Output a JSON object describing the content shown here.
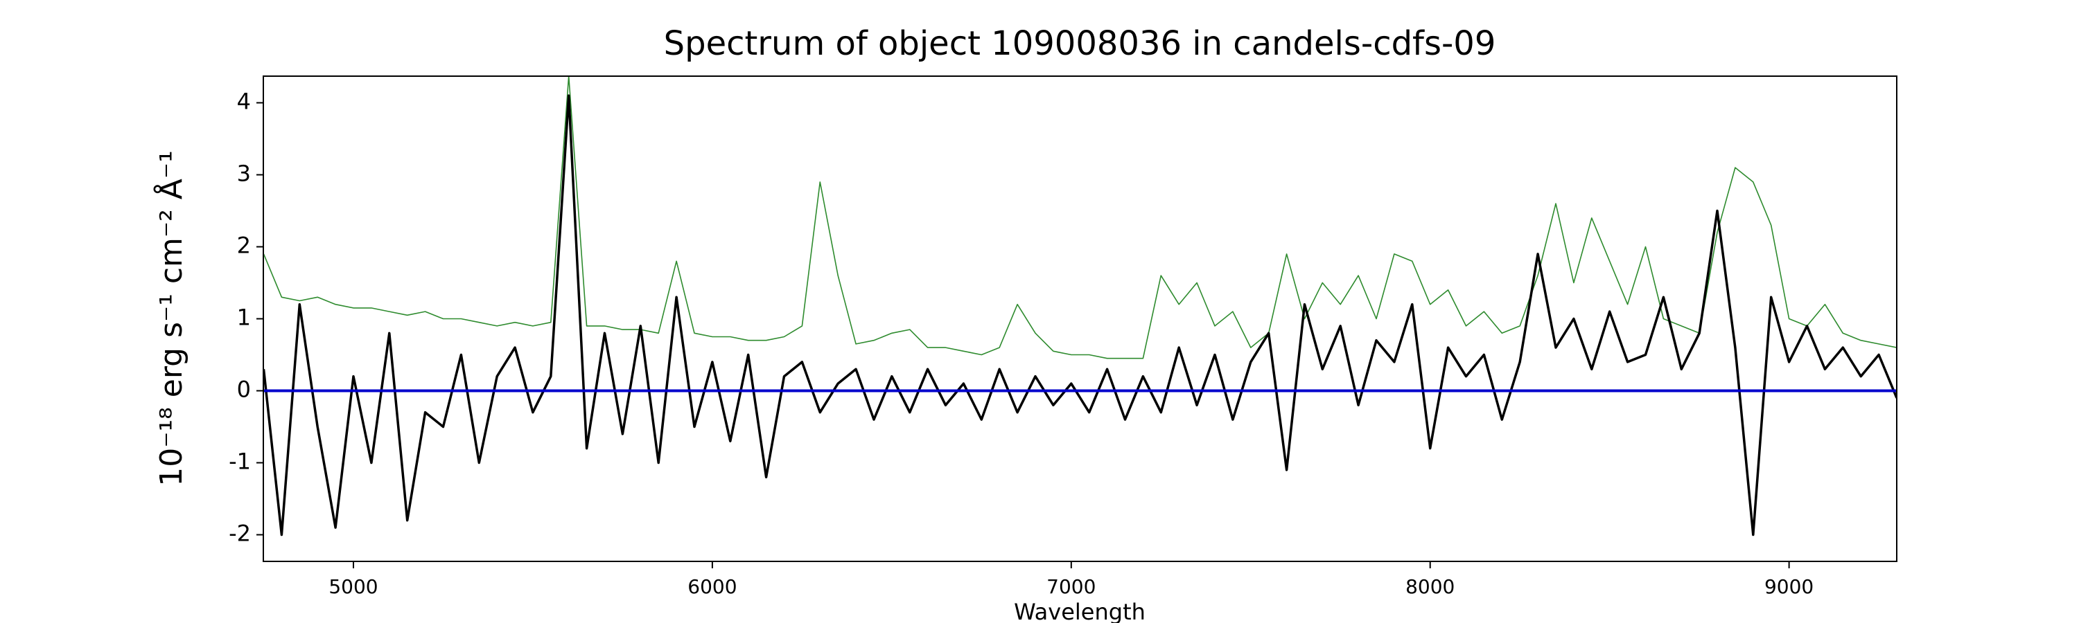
{
  "chart_data": {
    "type": "line",
    "title": "Spectrum of object 109008036 in candels-cdfs-09",
    "xlabel": "Wavelength",
    "ylabel": "10⁻¹⁸ erg s⁻¹ cm⁻² Å⁻¹",
    "x": [
      4750,
      4800,
      4850,
      4900,
      4950,
      5000,
      5050,
      5100,
      5150,
      5200,
      5250,
      5300,
      5350,
      5400,
      5450,
      5500,
      5550,
      5600,
      5650,
      5700,
      5750,
      5800,
      5850,
      5900,
      5950,
      6000,
      6050,
      6100,
      6150,
      6200,
      6250,
      6300,
      6350,
      6400,
      6450,
      6500,
      6550,
      6600,
      6650,
      6700,
      6750,
      6800,
      6850,
      6900,
      6950,
      7000,
      7050,
      7100,
      7150,
      7200,
      7250,
      7300,
      7350,
      7400,
      7450,
      7500,
      7550,
      7600,
      7650,
      7700,
      7750,
      7800,
      7850,
      7900,
      7950,
      8000,
      8050,
      8100,
      8150,
      8200,
      8250,
      8300,
      8350,
      8400,
      8450,
      8500,
      8550,
      8600,
      8650,
      8700,
      8750,
      8800,
      8850,
      8900,
      8950,
      9000,
      9050,
      9100,
      9150,
      9200,
      9250,
      9300
    ],
    "series": [
      {
        "color": "#2e8b2e",
        "width": 1.6,
        "values": [
          1.9,
          1.3,
          1.25,
          1.3,
          1.2,
          1.15,
          1.15,
          1.1,
          1.05,
          1.1,
          1.0,
          1.0,
          0.95,
          0.9,
          0.95,
          0.9,
          0.95,
          4.37,
          0.9,
          0.9,
          0.85,
          0.85,
          0.8,
          1.8,
          0.8,
          0.75,
          0.75,
          0.7,
          0.7,
          0.75,
          0.9,
          2.9,
          1.6,
          0.65,
          0.7,
          0.8,
          0.85,
          0.6,
          0.6,
          0.55,
          0.5,
          0.6,
          1.2,
          0.8,
          0.55,
          0.5,
          0.5,
          0.45,
          0.45,
          0.45,
          1.6,
          1.2,
          1.5,
          0.9,
          1.1,
          0.6,
          0.8,
          1.9,
          1.0,
          1.5,
          1.2,
          1.6,
          1.0,
          1.9,
          1.8,
          1.2,
          1.4,
          0.9,
          1.1,
          0.8,
          0.9,
          1.6,
          2.6,
          1.5,
          2.4,
          1.8,
          1.2,
          2.0,
          1.0,
          0.9,
          0.8,
          2.2,
          3.1,
          2.9,
          2.3,
          1.0,
          0.9,
          1.2,
          0.8,
          0.7,
          0.65,
          0.6
        ]
      },
      {
        "color": "#000000",
        "width": 3.5,
        "values": [
          0.3,
          -2.0,
          1.2,
          -0.5,
          -1.9,
          0.2,
          -1.0,
          0.8,
          -1.8,
          -0.3,
          -0.5,
          0.5,
          -1.0,
          0.2,
          0.6,
          -0.3,
          0.2,
          4.1,
          -0.8,
          0.8,
          -0.6,
          0.9,
          -1.0,
          1.3,
          -0.5,
          0.4,
          -0.7,
          0.5,
          -1.2,
          0.2,
          0.4,
          -0.3,
          0.1,
          0.3,
          -0.4,
          0.2,
          -0.3,
          0.3,
          -0.2,
          0.1,
          -0.4,
          0.3,
          -0.3,
          0.2,
          -0.2,
          0.1,
          -0.3,
          0.3,
          -0.4,
          0.2,
          -0.3,
          0.6,
          -0.2,
          0.5,
          -0.4,
          0.4,
          0.8,
          -1.1,
          1.2,
          0.3,
          0.9,
          -0.2,
          0.7,
          0.4,
          1.2,
          -0.8,
          0.6,
          0.2,
          0.5,
          -0.4,
          0.4,
          1.9,
          0.6,
          1.0,
          0.3,
          1.1,
          0.4,
          0.5,
          1.3,
          0.3,
          0.8,
          2.5,
          0.6,
          -2.0,
          1.3,
          0.4,
          0.9,
          0.3,
          0.6,
          0.2,
          0.5,
          -0.1
        ]
      },
      {
        "color": "#0000cc",
        "width": 4,
        "x": [
          4750,
          9300
        ],
        "values": [
          0,
          0
        ]
      }
    ],
    "xlim": [
      4749,
      9300
    ],
    "xticks": [
      5000,
      6000,
      7000,
      8000,
      9000
    ],
    "ylim": [
      -2.37,
      4.37
    ],
    "yticks": [
      -2,
      -1,
      0,
      1,
      2,
      3,
      4
    ]
  }
}
